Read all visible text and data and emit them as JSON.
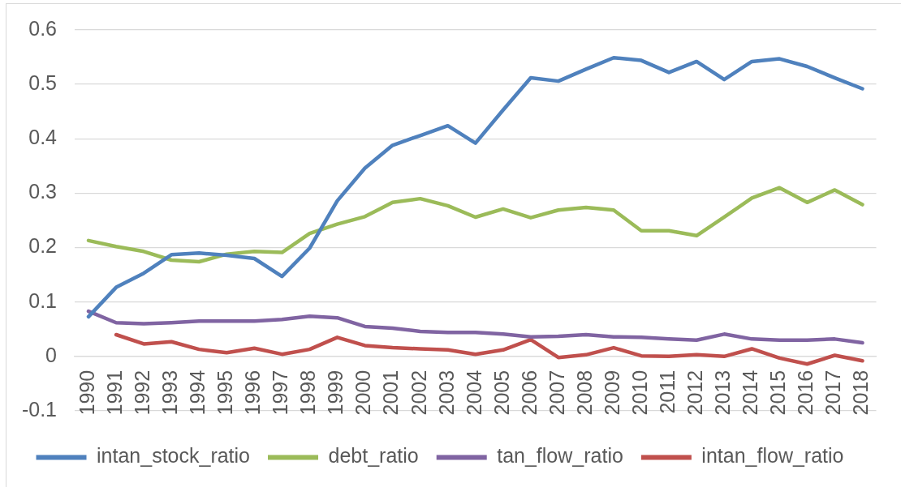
{
  "chart_data": {
    "type": "line",
    "categories": [
      "1990",
      "1991",
      "1992",
      "1993",
      "1994",
      "1995",
      "1996",
      "1997",
      "1998",
      "1999",
      "2000",
      "2001",
      "2002",
      "2003",
      "2004",
      "2005",
      "2006",
      "2007",
      "2008",
      "2009",
      "2010",
      "2011",
      "2012",
      "2013",
      "2014",
      "2015",
      "2016",
      "2017",
      "2018"
    ],
    "series": [
      {
        "name": "intan_stock_ratio",
        "color": "#4f81bd",
        "values": [
          0.073,
          0.127,
          0.153,
          0.187,
          0.19,
          0.186,
          0.18,
          0.147,
          0.199,
          0.286,
          0.346,
          0.388,
          0.406,
          0.424,
          0.392,
          0.453,
          0.512,
          0.506,
          0.528,
          0.549,
          0.544,
          0.522,
          0.542,
          0.509,
          0.542,
          0.547,
          0.533,
          0.512,
          0.492
        ]
      },
      {
        "name": "debt_ratio",
        "color": "#9bbb59",
        "values": [
          0.213,
          0.202,
          0.193,
          0.177,
          0.174,
          0.188,
          0.193,
          0.191,
          0.226,
          0.243,
          0.257,
          0.283,
          0.29,
          0.277,
          0.256,
          0.271,
          0.255,
          0.269,
          0.274,
          0.269,
          0.231,
          0.231,
          0.222,
          0.256,
          0.291,
          0.31,
          0.283,
          0.306,
          0.279
        ]
      },
      {
        "name": "tan_flow_ratio",
        "color": "#8064a2",
        "values": [
          0.083,
          0.062,
          0.06,
          0.062,
          0.065,
          0.065,
          0.065,
          0.068,
          0.074,
          0.071,
          0.055,
          0.052,
          0.046,
          0.044,
          0.044,
          0.041,
          0.036,
          0.037,
          0.04,
          0.036,
          0.035,
          0.032,
          0.03,
          0.041,
          0.032,
          0.03,
          0.03,
          0.032,
          0.025
        ]
      },
      {
        "name": "intan_flow_ratio",
        "color": "#c0504d",
        "values": [
          null,
          0.04,
          0.023,
          0.027,
          0.013,
          0.007,
          0.015,
          0.004,
          0.013,
          0.035,
          0.02,
          0.016,
          0.014,
          0.012,
          0.004,
          0.012,
          0.031,
          -0.002,
          0.003,
          0.016,
          0.001,
          0,
          0.003,
          0,
          0.014,
          -0.003,
          -0.014,
          0.002,
          -0.008
        ]
      }
    ],
    "ylim": [
      -0.1,
      0.6
    ],
    "yticks": [
      -0.1,
      0,
      0.1,
      0.2,
      0.3,
      0.4,
      0.5,
      0.6
    ],
    "grid": "y",
    "legend": "bottom",
    "marker": "none",
    "line_style": "solid"
  }
}
